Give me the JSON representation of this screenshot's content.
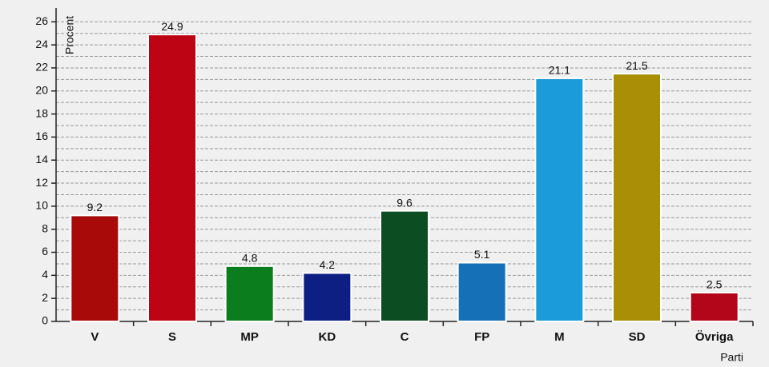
{
  "chart_data": {
    "type": "bar",
    "x_label": "Parti",
    "y_label": "Procent",
    "categories": [
      "V",
      "S",
      "MP",
      "KD",
      "C",
      "FP",
      "M",
      "SD",
      "Övriga"
    ],
    "values": [
      9.2,
      24.9,
      4.8,
      4.2,
      9.6,
      5.1,
      21.1,
      21.5,
      2.5
    ],
    "colors": [
      "#a80a0a",
      "#bc0414",
      "#0b7d1c",
      "#0d1f82",
      "#0d4d22",
      "#1670b8",
      "#1b9bd9",
      "#a88f06",
      "#b3061a"
    ],
    "ylim": [
      0,
      27.2
    ],
    "yticks": [
      0,
      2,
      4,
      6,
      8,
      10,
      12,
      14,
      16,
      18,
      20,
      22,
      24,
      26
    ],
    "minor_yticks": [
      1,
      3,
      5,
      7,
      9,
      11,
      13,
      15,
      17,
      19,
      21,
      23,
      25
    ],
    "grid": true,
    "data_labels": true
  }
}
